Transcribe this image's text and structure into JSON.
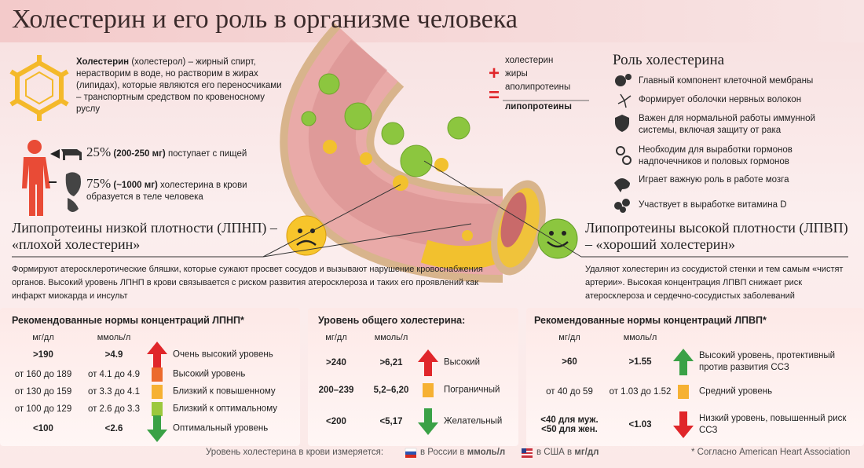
{
  "title": "Холестерин и его роль в организме человека",
  "intro": {
    "bold": "Холестерин",
    "text": " (холестерол) – жирный спирт, нерастворим в воде, но растворим в жирах (липидах), которые являются его переносчиками – транспортным средством по кровеносному руслу"
  },
  "sources": [
    {
      "percent": "25%",
      "amount": "(200-250 мг)",
      "text": "поступает с пищей"
    },
    {
      "percent": "75%",
      "amount": "(~1000 мг)",
      "text": "холестерина в крови образуется в теле человека"
    }
  ],
  "formula": {
    "plus": "+",
    "equals": "=",
    "items": [
      "холестерин",
      "жиры",
      "аполипротеины"
    ],
    "result": "липопротеины"
  },
  "roles": {
    "title": "Роль холестерина",
    "items": [
      "Главный компонент клеточной мембраны",
      "Формирует оболочки нервных волокон",
      "Важен для нормальной работы иммунной системы, включая защиту от рака",
      "Необходим для выработки гормонов надпочечников и половых гормонов",
      "Играет важную роль в работе мозга",
      "Участвует в выработке витамина D"
    ]
  },
  "ldl": {
    "title": "Липопротеины низкой плотности (ЛПНП) – «плохой холестерин»",
    "text": "Формируют атеросклеротические бляшки, которые сужают просвет сосудов и вызывают нарушение кровоснабжения органов. Высокий уровень ЛПНП в крови связывается с риском развития атеросклероза и таких его проявлений как инфаркт миокарда и инсульт"
  },
  "hdl": {
    "title": "Липопротеины высокой плотности (ЛПВП) – «хороший холестерин»",
    "text": "Удаляют холестерин из сосудистой стенки и тем самым «чистят артерии». Высокая концентрация ЛПВП снижает риск атеросклероза и сердечно-сосудистых заболеваний"
  },
  "tables": [
    {
      "title": "Рекомендованные нормы концентраций ЛПНП*",
      "headers": [
        "мг/дл",
        "ммоль/л"
      ],
      "rows": [
        [
          ">190",
          ">4.9",
          "Очень высокий уровень"
        ],
        [
          "от 160 до 189",
          "от 4.1 до 4.9",
          "Высокий уровень"
        ],
        [
          "от 130 до 159",
          "от 3.3 до 4.1",
          "Близкий к повышенному"
        ],
        [
          "от 100 до 129",
          "от 2.6 до 3.3",
          "Близкий к оптимальному"
        ],
        [
          "<100",
          "<2.6",
          "Оптимальный уровень"
        ]
      ],
      "indicators": [
        {
          "shape": "up",
          "color": "#e0262a"
        },
        {
          "shape": "box",
          "color": "#ec6a2c"
        },
        {
          "shape": "box",
          "color": "#f6b133"
        },
        {
          "shape": "box",
          "color": "#9cc83d"
        },
        {
          "shape": "down",
          "color": "#3aa146"
        }
      ]
    },
    {
      "title": "Уровень общего холестерина:",
      "headers": [
        "мг/дл",
        "ммоль/л"
      ],
      "rows": [
        [
          ">240",
          ">6,21",
          "Высокий"
        ],
        [
          "200–239",
          "5,2–6,20",
          "Пограничный"
        ],
        [
          "<200",
          "<5,17",
          "Желательный"
        ]
      ],
      "indicators": [
        {
          "shape": "up",
          "color": "#e0262a"
        },
        {
          "shape": "box",
          "color": "#f6b133"
        },
        {
          "shape": "down",
          "color": "#3aa146"
        }
      ]
    },
    {
      "title": "Рекомендованные нормы концентраций ЛПВП*",
      "headers": [
        "мг/дл",
        "ммоль/л"
      ],
      "rows": [
        [
          ">60",
          ">1.55",
          "Высокий уровень, протективный против развития ССЗ"
        ],
        [
          "от 40 до 59",
          "от 1.03 до 1.52",
          "Средний уровень"
        ],
        [
          "<40 для муж.\n<50 для жен.",
          "<1.03",
          "Низкий уровень, повышенный риск ССЗ"
        ]
      ],
      "indicators": [
        {
          "shape": "up",
          "color": "#3aa146"
        },
        {
          "shape": "box",
          "color": "#f6b133"
        },
        {
          "shape": "down",
          "color": "#e0262a"
        }
      ]
    }
  ],
  "footer": {
    "text": "Уровень холестерина в крови измеряется:",
    "russia": "в России в",
    "russia_unit": "ммоль/л",
    "usa": "в США в",
    "usa_unit": "мг/дл",
    "note": "* Согласно American Heart Association"
  }
}
